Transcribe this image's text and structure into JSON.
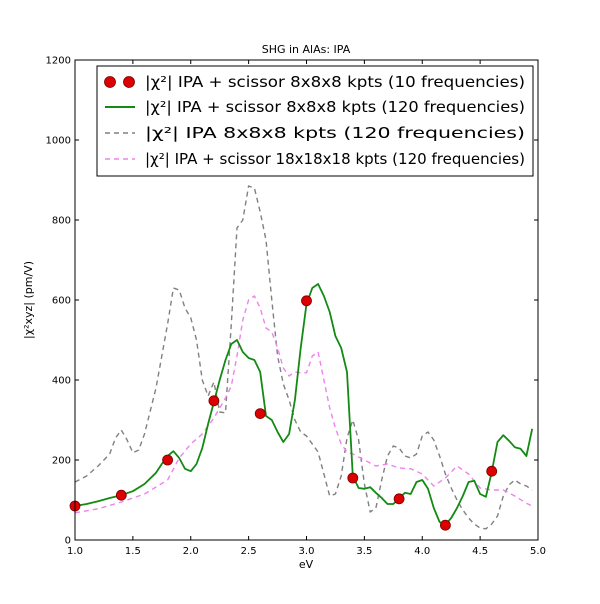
{
  "chart_data": {
    "type": "line",
    "title": "SHG in AlAs: IPA",
    "xlabel": "eV",
    "ylabel": "|χ²xyz| (pm/V)",
    "xlim": [
      1.0,
      5.0
    ],
    "ylim": [
      0,
      1200
    ],
    "xticks": [
      "1.0",
      "1.5",
      "2.0",
      "2.5",
      "3.0",
      "3.5",
      "4.0",
      "4.5",
      "5.0"
    ],
    "yticks": [
      "0",
      "200",
      "400",
      "600",
      "800",
      "1000",
      "1200"
    ],
    "grid": false,
    "legend_position": "top",
    "series": [
      {
        "name": "|χ²| IPA + scissor 8x8x8 kpts (10 frequencies)",
        "style": "markers",
        "color": "#dd0000",
        "x": [
          1.0,
          1.4,
          1.8,
          2.2,
          2.6,
          3.0,
          3.4,
          3.8,
          4.2,
          4.6
        ],
        "y": [
          85,
          112,
          200,
          348,
          316,
          598,
          155,
          103,
          37,
          172
        ]
      },
      {
        "name": "|χ²| IPA + scissor 8x8x8 kpts (120 frequencies)",
        "style": "solid",
        "color": "#138a13",
        "x": [
          1.0,
          1.1,
          1.2,
          1.3,
          1.4,
          1.5,
          1.6,
          1.7,
          1.75,
          1.8,
          1.85,
          1.9,
          1.95,
          2.0,
          2.05,
          2.1,
          2.15,
          2.2,
          2.25,
          2.3,
          2.35,
          2.4,
          2.45,
          2.5,
          2.55,
          2.6,
          2.65,
          2.7,
          2.75,
          2.8,
          2.85,
          2.9,
          2.95,
          3.0,
          3.05,
          3.1,
          3.15,
          3.2,
          3.25,
          3.3,
          3.35,
          3.4,
          3.45,
          3.5,
          3.55,
          3.6,
          3.65,
          3.7,
          3.75,
          3.8,
          3.85,
          3.9,
          3.95,
          4.0,
          4.05,
          4.1,
          4.15,
          4.2,
          4.25,
          4.3,
          4.35,
          4.4,
          4.45,
          4.5,
          4.55,
          4.6,
          4.65,
          4.7,
          4.75,
          4.8,
          4.85,
          4.9,
          4.95
        ],
        "y": [
          85,
          90,
          97,
          105,
          112,
          122,
          140,
          168,
          190,
          210,
          222,
          205,
          178,
          172,
          190,
          230,
          290,
          345,
          400,
          450,
          490,
          500,
          470,
          455,
          450,
          420,
          310,
          300,
          270,
          245,
          265,
          350,
          480,
          590,
          630,
          640,
          610,
          570,
          510,
          480,
          420,
          160,
          130,
          128,
          132,
          118,
          105,
          90,
          90,
          104,
          118,
          115,
          145,
          150,
          128,
          80,
          45,
          38,
          55,
          80,
          110,
          145,
          148,
          115,
          108,
          170,
          245,
          262,
          248,
          232,
          228,
          210,
          278
        ]
      },
      {
        "name": "|χ²| IPA 8x8x8 kpts (120 frequencies)",
        "style": "dashed",
        "color": "#808080",
        "x": [
          1.0,
          1.1,
          1.2,
          1.3,
          1.35,
          1.4,
          1.45,
          1.5,
          1.55,
          1.6,
          1.7,
          1.75,
          1.8,
          1.85,
          1.9,
          1.95,
          2.0,
          2.05,
          2.1,
          2.15,
          2.2,
          2.25,
          2.3,
          2.35,
          2.4,
          2.45,
          2.5,
          2.55,
          2.6,
          2.65,
          2.7,
          2.75,
          2.8,
          2.85,
          2.9,
          2.95,
          3.0,
          3.1,
          3.2,
          3.25,
          3.3,
          3.35,
          3.4,
          3.45,
          3.5,
          3.55,
          3.6,
          3.65,
          3.7,
          3.75,
          3.8,
          3.85,
          3.9,
          3.95,
          4.0,
          4.05,
          4.1,
          4.15,
          4.2,
          4.25,
          4.3,
          4.35,
          4.4,
          4.45,
          4.5,
          4.55,
          4.6,
          4.65,
          4.7,
          4.75,
          4.8,
          4.85,
          4.9,
          4.95
        ],
        "y": [
          145,
          160,
          185,
          215,
          255,
          275,
          250,
          218,
          225,
          265,
          380,
          460,
          540,
          630,
          625,
          580,
          555,
          500,
          400,
          360,
          395,
          320,
          318,
          540,
          780,
          800,
          885,
          880,
          820,
          750,
          600,
          460,
          390,
          350,
          300,
          270,
          260,
          220,
          110,
          115,
          160,
          255,
          300,
          250,
          140,
          70,
          80,
          150,
          210,
          235,
          230,
          210,
          205,
          215,
          260,
          270,
          250,
          210,
          165,
          130,
          100,
          75,
          55,
          40,
          30,
          28,
          40,
          60,
          110,
          138,
          150,
          140,
          135,
          125
        ]
      },
      {
        "name": "|χ²| IPA + scissor 18x18x18 kpts (120 frequencies)",
        "style": "dashed",
        "color": "#ee82ee",
        "x": [
          1.0,
          1.2,
          1.4,
          1.6,
          1.8,
          1.9,
          2.0,
          2.1,
          2.2,
          2.3,
          2.35,
          2.4,
          2.45,
          2.5,
          2.55,
          2.6,
          2.65,
          2.7,
          2.75,
          2.8,
          2.85,
          2.9,
          2.95,
          3.0,
          3.05,
          3.1,
          3.15,
          3.2,
          3.25,
          3.3,
          3.35,
          3.4,
          3.5,
          3.6,
          3.7,
          3.8,
          3.9,
          4.0,
          4.1,
          4.2,
          4.3,
          4.4,
          4.5,
          4.6,
          4.7,
          4.8,
          4.9,
          4.95
        ],
        "y": [
          68,
          78,
          95,
          115,
          150,
          205,
          240,
          265,
          305,
          355,
          385,
          460,
          550,
          600,
          610,
          580,
          530,
          520,
          480,
          430,
          410,
          420,
          418,
          418,
          460,
          470,
          400,
          330,
          280,
          240,
          220,
          215,
          200,
          185,
          190,
          180,
          178,
          165,
          135,
          155,
          185,
          165,
          130,
          125,
          125,
          110,
          92,
          85
        ]
      }
    ]
  }
}
